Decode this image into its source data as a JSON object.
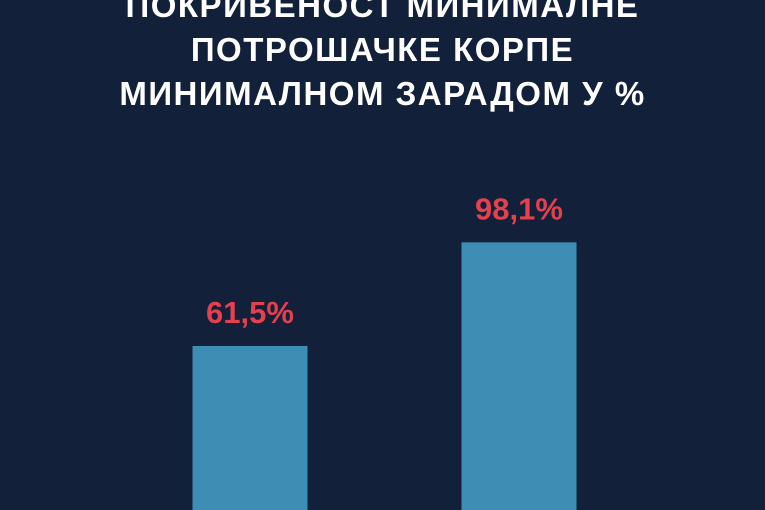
{
  "title_lines": [
    "ПОКРИВЕНОСТ МИНИМАЛНЕ",
    "ПОТРОШАЧКЕ КОРПЕ",
    "МИНИМАЛНОМ ЗАРАДОМ У %"
  ],
  "colors": {
    "background": "#12203a",
    "bar": "#3e8db4",
    "value_label": "#e4404d",
    "title": "#ffffff"
  },
  "chart_data": {
    "type": "bar",
    "title": "ПОКРИВЕНОСТ МИНИМАЛНЕ ПОТРОШАЧКЕ КОРПЕ МИНИМАЛНОМ ЗАРАДОМ У %",
    "categories": [
      "",
      ""
    ],
    "values": [
      61.5,
      98.1
    ],
    "value_labels": [
      "61,5%",
      "98,1%"
    ],
    "xlabel": "",
    "ylabel": "",
    "grid": false
  }
}
